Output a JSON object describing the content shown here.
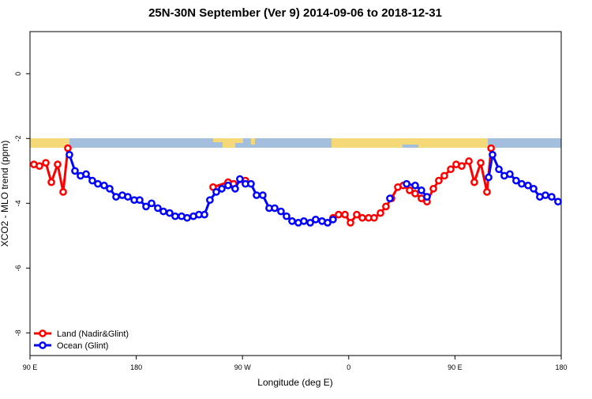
{
  "chart_data": {
    "type": "line",
    "title": "25N-30N September (Ver 9)   2014-09-06 to 2018-12-31",
    "x_label": "Longitude (deg E)",
    "y_label": "XCO2 - MLO trend (ppm)",
    "xlim": [
      90,
      540
    ],
    "ylim": [
      -8.7,
      1.3
    ],
    "xticks": [
      {
        "value": 90,
        "label": "90 E"
      },
      {
        "value": 180,
        "label": "180"
      },
      {
        "value": 270,
        "label": "90 W"
      },
      {
        "value": 360,
        "label": "0"
      },
      {
        "value": 450,
        "label": "90 E"
      },
      {
        "value": 540,
        "label": "180"
      }
    ],
    "yticks": [
      -8,
      -6,
      -4,
      -2,
      0
    ],
    "legend": "bottom-left",
    "series": [
      {
        "name": "Land (Nadir&Glint)",
        "color": "#ff0000",
        "x": [
          93.3,
          98.0,
          103.4,
          108.1,
          113.4,
          118.1,
          122.1,
          null,
          245.1,
          257.8,
          262.5,
          272.5,
          null,
          346.7,
          351.4,
          356.8,
          361.5,
          366.8,
          371.5,
          376.8,
          381.5,
          386.9,
          391.5,
          396.2,
          401.6,
          406.2,
          411.6,
          416.3,
          421.6,
          426.3,
          431.7,
          436.3,
          441.0,
          446.4,
          451.0,
          455.7,
          461.8,
          466.4,
          471.8,
          477.1,
          480.6
        ],
        "values": [
          -2.8,
          -2.85,
          -2.75,
          -3.35,
          -2.8,
          -3.65,
          -2.3,
          null,
          -3.5,
          -3.35,
          -3.4,
          -3.3,
          null,
          -4.45,
          -4.35,
          -4.35,
          -4.6,
          -4.35,
          -4.45,
          -4.45,
          -4.45,
          -4.3,
          -4.1,
          -3.85,
          -3.5,
          -3.45,
          -3.6,
          -3.7,
          -3.85,
          -3.95,
          -3.55,
          -3.3,
          -3.15,
          -2.95,
          -2.8,
          -2.85,
          -2.7,
          -3.35,
          -2.75,
          -3.65,
          -2.3
        ]
      },
      {
        "name": "Ocean (Glint)",
        "color": "#0000ff",
        "x": [
          123.4,
          128.1,
          132.8,
          137.5,
          142.8,
          147.5,
          152.8,
          157.5,
          162.9,
          168.2,
          172.9,
          178.3,
          182.9,
          188.3,
          193.0,
          198.3,
          203.0,
          208.3,
          213.0,
          218.4,
          223.1,
          228.4,
          233.1,
          237.8,
          242.4,
          247.8,
          252.5,
          257.8,
          263.8,
          267.8,
          272.5,
          277.2,
          281.9,
          287.2,
          292.6,
          297.3,
          302.6,
          307.3,
          312.0,
          317.3,
          322.0,
          327.4,
          332.0,
          337.4,
          342.1,
          346.7,
          null,
          394.9,
          null,
          409.0,
          416.3,
          421.6,
          426.3,
          null,
          478.5,
          481.8,
          487.2,
          491.8,
          496.5,
          501.8,
          506.5,
          511.9,
          516.6,
          521.9,
          526.6,
          531.9,
          537.3
        ],
        "values": [
          -2.5,
          -3.0,
          -3.15,
          -3.1,
          -3.3,
          -3.4,
          -3.45,
          -3.55,
          -3.8,
          -3.75,
          -3.8,
          -3.9,
          -3.9,
          -4.1,
          -4.0,
          -4.15,
          -4.25,
          -4.3,
          -4.4,
          -4.4,
          -4.45,
          -4.4,
          -4.35,
          -4.35,
          -3.9,
          -3.65,
          -3.55,
          -3.45,
          -3.55,
          -3.25,
          -3.4,
          -3.4,
          -3.75,
          -3.75,
          -4.15,
          -4.15,
          -4.25,
          -4.4,
          -4.55,
          -4.6,
          -4.55,
          -4.6,
          -4.5,
          -4.55,
          -4.6,
          -4.5,
          null,
          -3.85,
          null,
          -3.4,
          -3.45,
          -3.6,
          -3.8,
          null,
          -3.2,
          -2.5,
          -2.95,
          -3.15,
          -3.1,
          -3.3,
          -3.4,
          -3.45,
          -3.55,
          -3.8,
          -3.75,
          -3.8,
          -3.95
        ]
      }
    ]
  }
}
